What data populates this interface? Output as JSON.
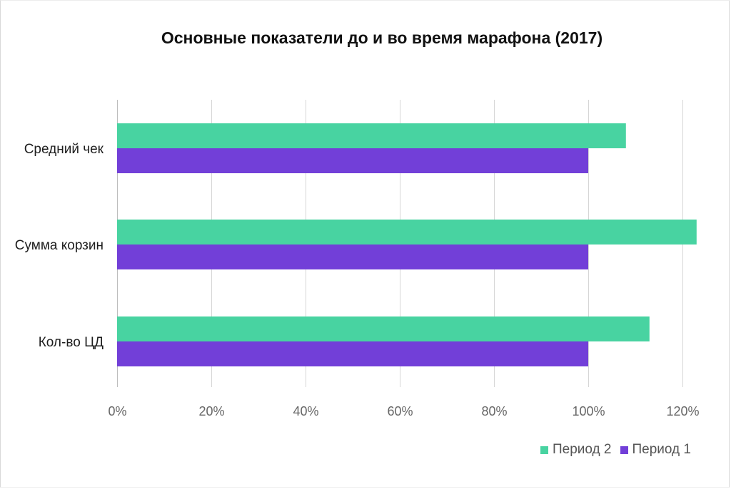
{
  "chart_data": {
    "type": "bar",
    "orientation": "horizontal",
    "title": "Основные показатели до и во время марафона (2017)",
    "categories": [
      "Средний чек",
      "Сумма корзин",
      "Кол-во ЦД"
    ],
    "series": [
      {
        "name": "Период 2",
        "values": [
          108,
          123,
          113
        ],
        "color": "#48d3a1"
      },
      {
        "name": "Период 1",
        "values": [
          100,
          100,
          100
        ],
        "color": "#723fd8"
      }
    ],
    "xlim": [
      0,
      130
    ],
    "ticks": [
      0,
      20,
      40,
      60,
      80,
      100,
      120
    ],
    "tick_labels": [
      "0%",
      "20%",
      "40%",
      "60%",
      "80%",
      "100%",
      "120%"
    ],
    "xlabel": "",
    "ylabel": "",
    "grid": true,
    "legend_position": "bottom-right"
  }
}
